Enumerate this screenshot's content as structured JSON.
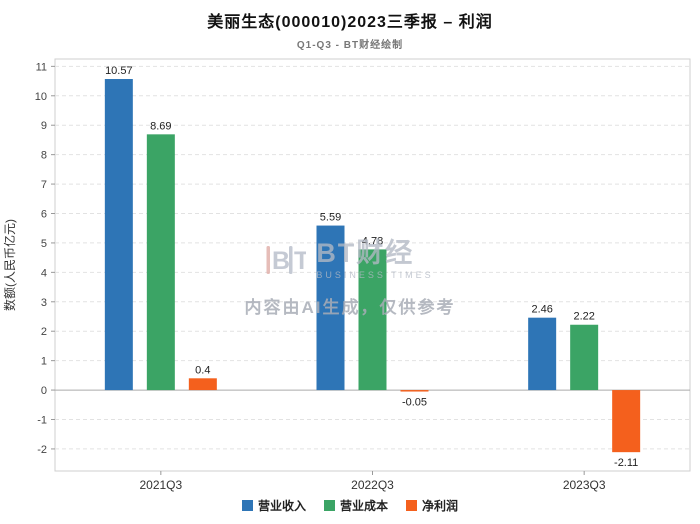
{
  "header": {
    "title": "美丽生态(000010)2023三季报 – 利润",
    "subtitle": "Q1-Q3 - BT财经绘制"
  },
  "watermark": {
    "logo_text": "BT财经",
    "logo_sub": "BUSINESS TIMES",
    "disclaimer": "内容由AI生成，仅供参考"
  },
  "chart_data": {
    "type": "bar",
    "title": "美丽生态(000010)2023三季报 – 利润",
    "subtitle": "Q1-Q3 - BT财经绘制",
    "categories": [
      "2021Q3",
      "2022Q3",
      "2023Q3"
    ],
    "series": [
      {
        "name": "营业收入",
        "color": "#2E75B6",
        "values": [
          10.57,
          5.59,
          2.46
        ]
      },
      {
        "name": "营业成本",
        "color": "#3BA465",
        "values": [
          8.69,
          4.78,
          2.22
        ]
      },
      {
        "name": "净利润",
        "color": "#F4601D",
        "values": [
          0.4,
          -0.05,
          -2.11
        ]
      }
    ],
    "xlabel": "",
    "ylabel": "数额(人民币亿元)",
    "ylim": [
      -2.75,
      11.25
    ],
    "yticks": [
      -2,
      -1,
      0,
      1,
      2,
      3,
      4,
      5,
      6,
      7,
      8,
      9,
      10,
      11
    ],
    "grid": true,
    "grid_style": "dashed",
    "legend_position": "bottom"
  }
}
